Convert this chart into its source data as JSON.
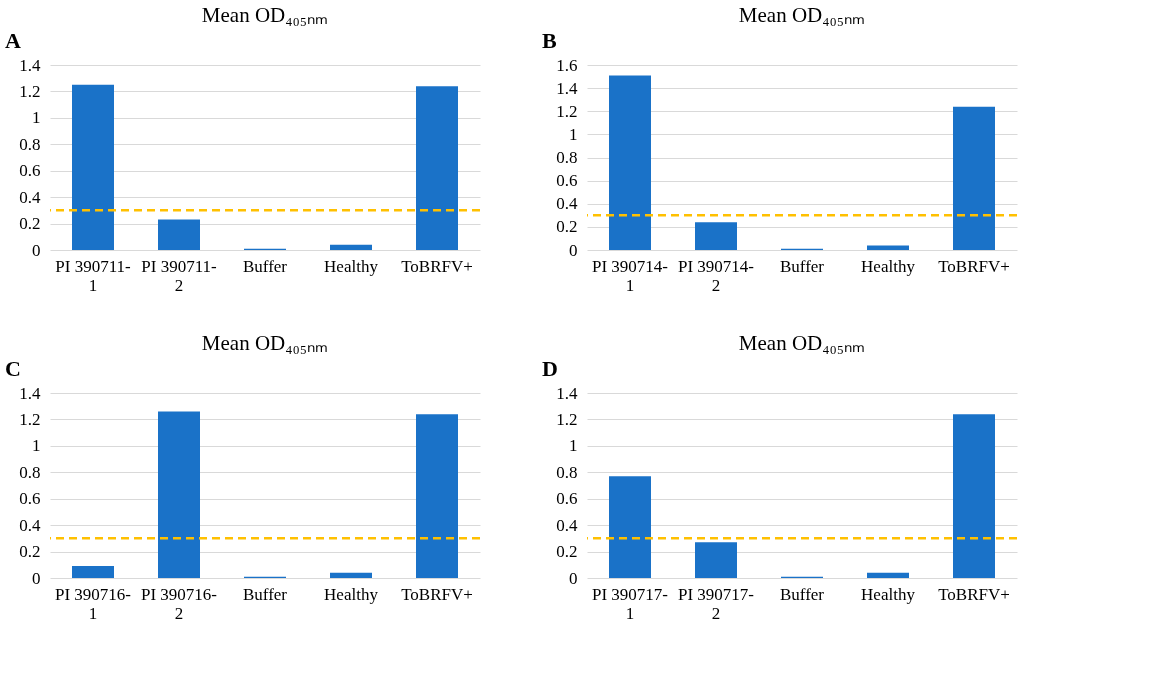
{
  "chart_data": [
    {
      "type": "bar",
      "title": "Mean OD₄₀₅ₙₘ",
      "annotations": [
        "A"
      ],
      "categories": [
        "PI 390711-1",
        "PI 390711-2",
        "Buffer",
        "Healthy",
        "ToBRFV+"
      ],
      "values": [
        1.25,
        0.23,
        0.01,
        0.04,
        1.24
      ],
      "color": "#1a72c8",
      "ylim": [
        0,
        1.4
      ],
      "yticks": [
        0,
        0.2,
        0.4,
        0.6,
        0.8,
        1,
        1.2,
        1.4
      ],
      "grid": "y",
      "legend": false,
      "ref_lines": [
        {
          "axis": "y",
          "value": 0.3,
          "color": "#ffc000",
          "line_style": "dashed"
        }
      ]
    },
    {
      "type": "bar",
      "title": "Mean OD₄₀₅ₙₘ",
      "annotations": [
        "B"
      ],
      "categories": [
        "PI 390714-1",
        "PI 390714-2",
        "Buffer",
        "Healthy",
        "ToBRFV+"
      ],
      "values": [
        1.51,
        0.24,
        0.01,
        0.04,
        1.24
      ],
      "color": "#1a72c8",
      "ylim": [
        0,
        1.6
      ],
      "yticks": [
        0,
        0.2,
        0.4,
        0.6,
        0.8,
        1,
        1.2,
        1.4,
        1.6
      ],
      "grid": "y",
      "legend": false,
      "ref_lines": [
        {
          "axis": "y",
          "value": 0.3,
          "color": "#ffc000",
          "line_style": "dashed"
        }
      ]
    },
    {
      "type": "bar",
      "title": "Mean OD₄₀₅ₙₘ",
      "annotations": [
        "C"
      ],
      "categories": [
        "PI 390716-1",
        "PI 390716-2",
        "Buffer",
        "Healthy",
        "ToBRFV+"
      ],
      "values": [
        0.09,
        1.26,
        0.01,
        0.04,
        1.24
      ],
      "color": "#1a72c8",
      "ylim": [
        0,
        1.4
      ],
      "yticks": [
        0,
        0.2,
        0.4,
        0.6,
        0.8,
        1,
        1.2,
        1.4
      ],
      "grid": "y",
      "legend": false,
      "ref_lines": [
        {
          "axis": "y",
          "value": 0.3,
          "color": "#ffc000",
          "line_style": "dashed"
        }
      ]
    },
    {
      "type": "bar",
      "title": "Mean OD₄₀₅ₙₘ",
      "annotations": [
        "D"
      ],
      "categories": [
        "PI 390717-1",
        "PI 390717-2",
        "Buffer",
        "Healthy",
        "ToBRFV+"
      ],
      "values": [
        0.77,
        0.27,
        0.01,
        0.04,
        1.24
      ],
      "color": "#1a72c8",
      "ylim": [
        0,
        1.4
      ],
      "yticks": [
        0,
        0.2,
        0.4,
        0.6,
        0.8,
        1,
        1.2,
        1.4
      ],
      "grid": "y",
      "legend": false,
      "ref_lines": [
        {
          "axis": "y",
          "value": 0.3,
          "color": "#ffc000",
          "line_style": "dashed"
        }
      ]
    }
  ]
}
